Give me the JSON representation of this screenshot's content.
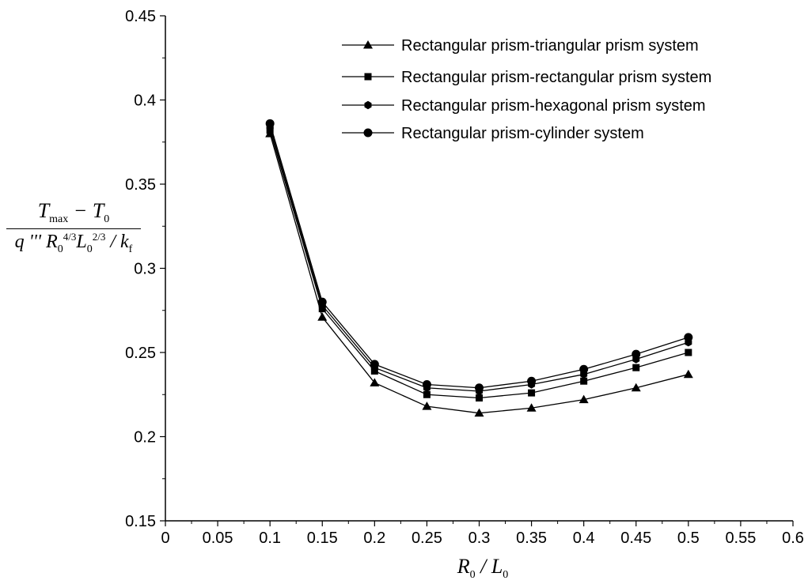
{
  "chart_data": {
    "type": "line",
    "title": "",
    "xlabel": "R0/L0",
    "ylabel": "(Tmax − T0) / (q''' R0^(4/3) L0^(2/3) / kf)",
    "xlim": [
      0,
      0.6
    ],
    "ylim": [
      0.15,
      0.45
    ],
    "xticks": [
      0,
      0.05,
      0.1,
      0.15,
      0.2,
      0.25,
      0.3,
      0.35,
      0.4,
      0.45,
      0.5,
      0.55,
      0.6
    ],
    "xtick_labels": [
      "0",
      "0.05",
      "0.1",
      "0.15",
      "0.2",
      "0.25",
      "0.3",
      "0.35",
      "0.4",
      "0.45",
      "0.5",
      "0.55",
      "0.6"
    ],
    "yticks": [
      0.15,
      0.2,
      0.25,
      0.3,
      0.35,
      0.4,
      0.45
    ],
    "ytick_labels": [
      "0.15",
      "0.2",
      "0.25",
      "0.3",
      "0.35",
      "0.4",
      "0.45"
    ],
    "grid": false,
    "legend_position": "top-right",
    "x": [
      0.1,
      0.15,
      0.2,
      0.25,
      0.3,
      0.35,
      0.4,
      0.45,
      0.5
    ],
    "series": [
      {
        "name": "Rectangular prism-triangular prism system",
        "marker": "triangle",
        "values": [
          0.38,
          0.271,
          0.232,
          0.218,
          0.214,
          0.217,
          0.222,
          0.229,
          0.237
        ]
      },
      {
        "name": "Rectangular prism-rectangular prism system",
        "marker": "square",
        "values": [
          0.382,
          0.276,
          0.239,
          0.225,
          0.223,
          0.226,
          0.233,
          0.241,
          0.25
        ]
      },
      {
        "name": "Rectangular prism-hexagonal prism system",
        "marker": "hexagon",
        "values": [
          0.384,
          0.278,
          0.241,
          0.229,
          0.227,
          0.231,
          0.237,
          0.246,
          0.256
        ]
      },
      {
        "name": "Rectangular prism-cylinder system",
        "marker": "circle",
        "values": [
          0.386,
          0.28,
          0.243,
          0.231,
          0.229,
          0.233,
          0.24,
          0.249,
          0.259
        ]
      }
    ]
  }
}
